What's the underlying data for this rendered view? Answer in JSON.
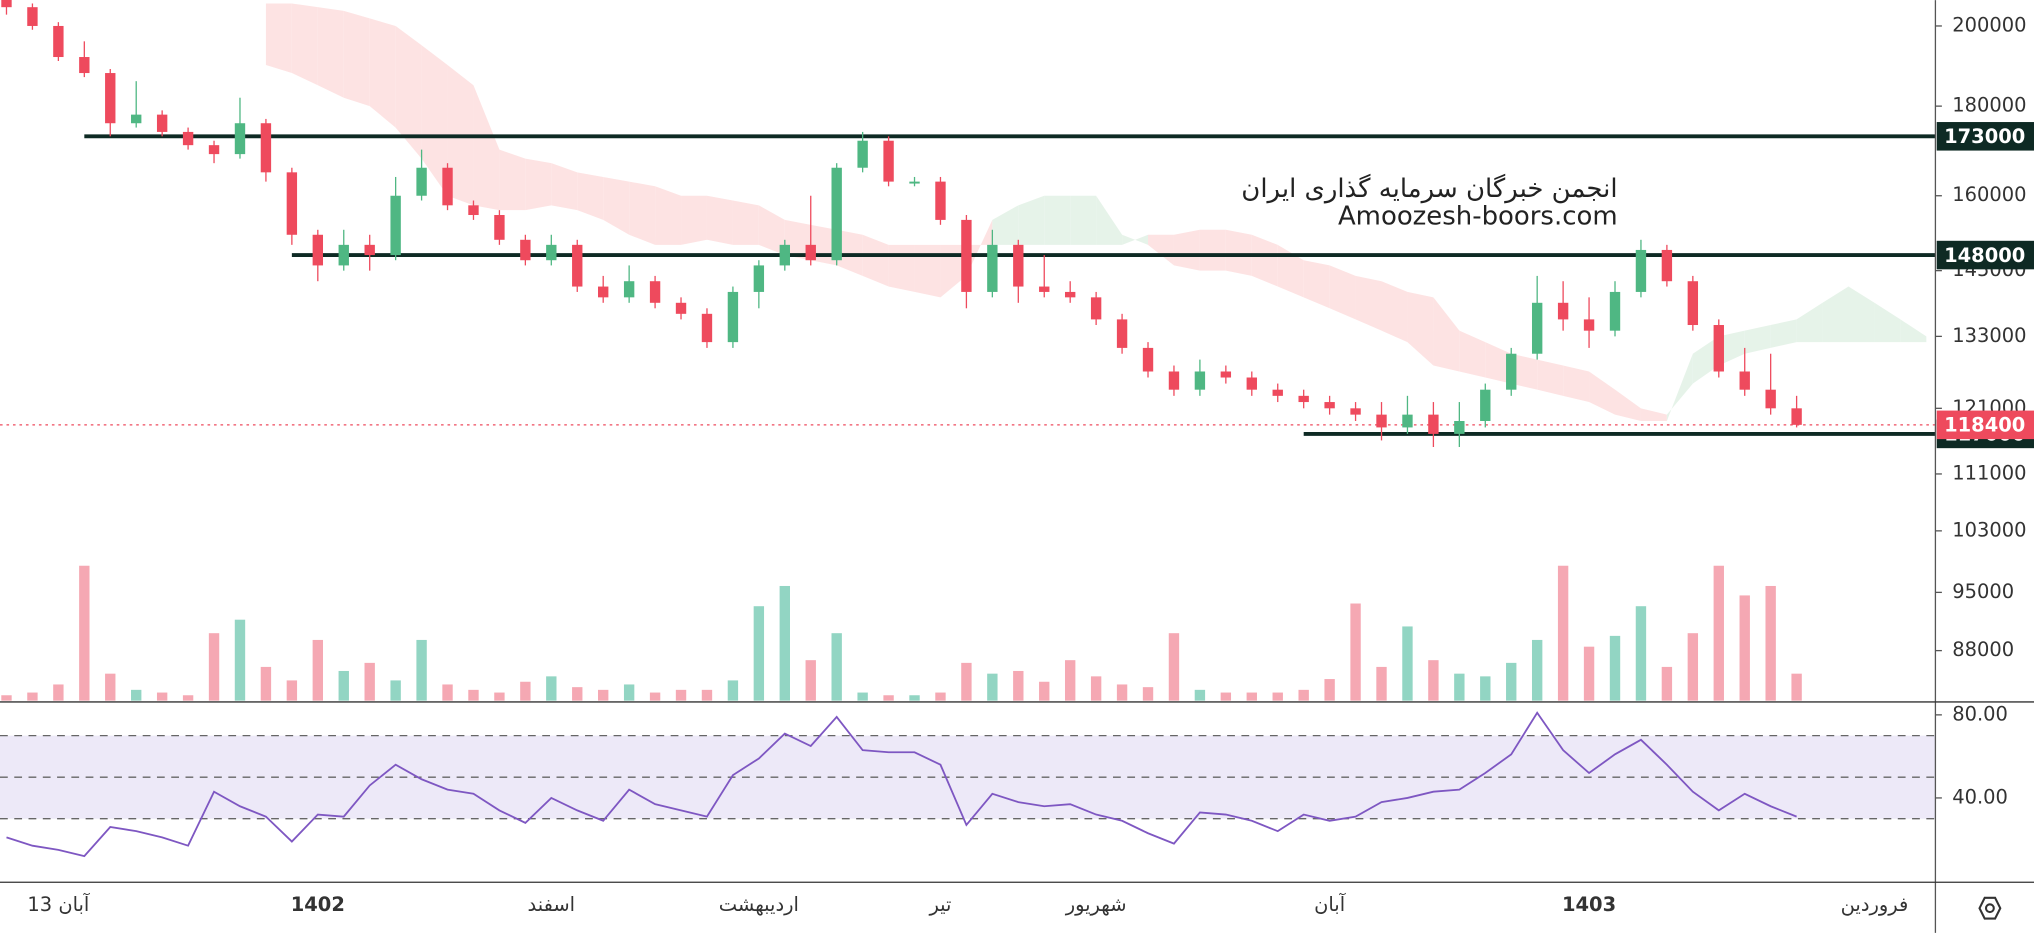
{
  "chart_data": {
    "type": "candlestick",
    "watermark": [
      "انجمن خبرگان سرمایه گذاری ایران",
      "Amoozesh-boors.com"
    ],
    "ylim": [
      82400,
      206900
    ],
    "log_scale": true,
    "yticks": [
      200000,
      180000,
      160000,
      145000,
      133000,
      121000,
      111000,
      103000,
      95000,
      88000
    ],
    "up_color": "#4fb783",
    "down_color": "#ee4a5d",
    "ohlc": [
      [
        207000,
        209000,
        203000,
        205000
      ],
      [
        205000,
        206000,
        199000,
        200000
      ],
      [
        200000,
        201000,
        191000,
        192000
      ],
      [
        192000,
        196000,
        187000,
        188000
      ],
      [
        188000,
        189000,
        173000,
        176000
      ],
      [
        176000,
        186000,
        175000,
        178000
      ],
      [
        178000,
        179000,
        173000,
        174000
      ],
      [
        174000,
        175000,
        170000,
        171000
      ],
      [
        171000,
        172000,
        167000,
        169000
      ],
      [
        169000,
        182000,
        168000,
        176000
      ],
      [
        176000,
        177000,
        163000,
        165000
      ],
      [
        165000,
        166000,
        150000,
        152000
      ],
      [
        152000,
        153000,
        143000,
        146000
      ],
      [
        146000,
        153000,
        145000,
        150000
      ],
      [
        150000,
        152000,
        145000,
        148000
      ],
      [
        148000,
        164000,
        147000,
        160000
      ],
      [
        160000,
        170000,
        159000,
        166000
      ],
      [
        166000,
        167000,
        157000,
        158000
      ],
      [
        158000,
        159000,
        155000,
        156000
      ],
      [
        156000,
        157000,
        150000,
        151000
      ],
      [
        151000,
        152000,
        146000,
        147000
      ],
      [
        147000,
        152000,
        146000,
        150000
      ],
      [
        150000,
        151000,
        141000,
        142000
      ],
      [
        142000,
        144000,
        139000,
        140000
      ],
      [
        140000,
        146000,
        139000,
        143000
      ],
      [
        143000,
        144000,
        138000,
        139000
      ],
      [
        139000,
        140000,
        136000,
        137000
      ],
      [
        137000,
        138000,
        131000,
        132000
      ],
      [
        132000,
        142000,
        131000,
        141000
      ],
      [
        141000,
        147000,
        138000,
        146000
      ],
      [
        146000,
        151000,
        145000,
        150000
      ],
      [
        150000,
        160000,
        146000,
        147000
      ],
      [
        147000,
        167000,
        146000,
        166000
      ],
      [
        166000,
        174000,
        165000,
        172000
      ],
      [
        172000,
        173000,
        162000,
        163000
      ],
      [
        163000,
        164000,
        162000,
        163000
      ],
      [
        163000,
        164000,
        154000,
        155000
      ],
      [
        155000,
        156000,
        138000,
        141000
      ],
      [
        141000,
        153000,
        140000,
        150000
      ],
      [
        150000,
        151000,
        139000,
        142000
      ],
      [
        142000,
        148000,
        140000,
        141000
      ],
      [
        141000,
        143000,
        139000,
        140000
      ],
      [
        140000,
        141000,
        135000,
        136000
      ],
      [
        136000,
        137000,
        130000,
        131000
      ],
      [
        131000,
        132000,
        126000,
        127000
      ],
      [
        127000,
        128000,
        123000,
        124000
      ],
      [
        124000,
        129000,
        123000,
        127000
      ],
      [
        127000,
        128000,
        125000,
        126000
      ],
      [
        126000,
        127000,
        123000,
        124000
      ],
      [
        124000,
        125000,
        122000,
        123000
      ],
      [
        123000,
        124000,
        121000,
        122000
      ],
      [
        122000,
        123000,
        120000,
        121000
      ],
      [
        121000,
        122000,
        119000,
        120000
      ],
      [
        120000,
        122000,
        116000,
        118000
      ],
      [
        118000,
        123000,
        117000,
        120000
      ],
      [
        120000,
        122000,
        115000,
        117000
      ],
      [
        117000,
        122000,
        115000,
        119000
      ],
      [
        119000,
        125000,
        118000,
        124000
      ],
      [
        124000,
        131000,
        123000,
        130000
      ],
      [
        130000,
        144000,
        129000,
        139000
      ],
      [
        139000,
        143000,
        134000,
        136000
      ],
      [
        136000,
        140000,
        131000,
        134000
      ],
      [
        134000,
        143000,
        133000,
        141000
      ],
      [
        141000,
        151000,
        140000,
        149000
      ],
      [
        149000,
        150000,
        142000,
        143000
      ],
      [
        143000,
        144000,
        134000,
        135000
      ],
      [
        135000,
        136000,
        126000,
        127000
      ],
      [
        127000,
        131000,
        123000,
        124000
      ],
      [
        124000,
        130000,
        120000,
        121000
      ],
      [
        121000,
        123000,
        118000,
        118400
      ]
    ],
    "cloud": {
      "span_a": [
        null,
        null,
        null,
        null,
        null,
        null,
        null,
        null,
        null,
        null,
        190000,
        188000,
        185000,
        182000,
        180000,
        175000,
        168000,
        160000,
        158000,
        157000,
        157000,
        158000,
        157000,
        155000,
        152000,
        150000,
        150000,
        151000,
        150000,
        150000,
        148000,
        147000,
        146000,
        144000,
        142000,
        141000,
        140000,
        144000,
        155000,
        158000,
        160000,
        160000,
        160000,
        152000,
        150000,
        146000,
        145000,
        145000,
        144000,
        142000,
        140000,
        138000,
        136000,
        134000,
        132000,
        128000,
        127000,
        126000,
        125000,
        124000,
        123000,
        122000,
        120000,
        119000,
        119000,
        130000,
        133000,
        134000,
        135000,
        136000,
        139000,
        142000,
        139000,
        136000,
        133000
      ],
      "span_b": [
        null,
        null,
        null,
        null,
        null,
        null,
        null,
        null,
        null,
        null,
        206000,
        206000,
        205000,
        204000,
        202000,
        200000,
        195000,
        190000,
        185000,
        170000,
        168000,
        167000,
        165000,
        164000,
        163000,
        162000,
        160000,
        160000,
        159000,
        158000,
        155000,
        154000,
        153000,
        152000,
        150000,
        150000,
        150000,
        150000,
        150000,
        150000,
        150000,
        150000,
        150000,
        150000,
        152000,
        152000,
        153000,
        153000,
        152000,
        150000,
        147000,
        146000,
        144000,
        143000,
        141000,
        140000,
        134000,
        132000,
        130000,
        129000,
        128000,
        127000,
        124000,
        121000,
        120000,
        125000,
        128000,
        130000,
        131000,
        132000,
        132000,
        132000,
        132000,
        132000,
        132000
      ],
      "bear_color": "#fde3e3",
      "bull_color": "#e6f3e9"
    },
    "levels": [
      {
        "value": 173000,
        "start": 3
      },
      {
        "value": 148000,
        "start": 11
      },
      {
        "value": 117000,
        "start": 50
      }
    ],
    "level_color": "#0e2a24",
    "last_price": 118400,
    "last_color": "#ee4a5d",
    "volume": {
      "ylim": [
        0,
        100
      ],
      "up_color": "#92d5c3",
      "down_color": "#f5a8b3",
      "values": [
        4,
        6,
        12,
        100,
        20,
        8,
        6,
        4,
        50,
        60,
        25,
        15,
        45,
        22,
        28,
        15,
        45,
        12,
        8,
        6,
        14,
        18,
        10,
        8,
        12,
        6,
        8,
        8,
        15,
        70,
        85,
        30,
        50,
        6,
        4,
        4,
        6,
        28,
        20,
        22,
        14,
        30,
        18,
        12,
        10,
        50,
        8,
        6,
        6,
        6,
        8,
        16,
        72,
        25,
        55,
        30,
        20,
        18,
        28,
        45,
        100,
        40,
        48,
        70,
        25,
        50,
        100,
        78,
        85,
        20
      ]
    },
    "rsi": {
      "ylim": [
        -0.6,
        85.6
      ],
      "yticks": [
        {
          "value": 80,
          "label": "80.00"
        },
        {
          "value": 40,
          "label": "40.00"
        }
      ],
      "band": [
        30,
        70
      ],
      "levels": [
        30,
        50,
        70
      ],
      "color": "#7e57c2",
      "band_color": "#ede9f8",
      "values": [
        21,
        17,
        15,
        12,
        26,
        24,
        21,
        17,
        43,
        36,
        31,
        19,
        32,
        31,
        46,
        56,
        49,
        44,
        42,
        34,
        28,
        40,
        34,
        29,
        44,
        37,
        34,
        31,
        51,
        59,
        71,
        65,
        79,
        63,
        62,
        62,
        56,
        27,
        42,
        38,
        36,
        37,
        32,
        29,
        23,
        18,
        33,
        32,
        29,
        24,
        32,
        29,
        31,
        38,
        40,
        43,
        44,
        52,
        61,
        81,
        63,
        52,
        61,
        68,
        56,
        43,
        34,
        42,
        36,
        31
      ]
    },
    "time_labels": [
      {
        "label": "13 آبان",
        "at": 2
      },
      {
        "label": "1402",
        "at": 12
      },
      {
        "label": "اسفند",
        "at": 21
      },
      {
        "label": "اردیبهشت",
        "at": 29
      },
      {
        "label": "تیر",
        "at": 36
      },
      {
        "label": "شهریور",
        "at": 42
      },
      {
        "label": "آبان",
        "at": 51
      },
      {
        "label": "1403",
        "at": 61
      },
      {
        "label": "فروردین",
        "at": 72
      }
    ]
  }
}
